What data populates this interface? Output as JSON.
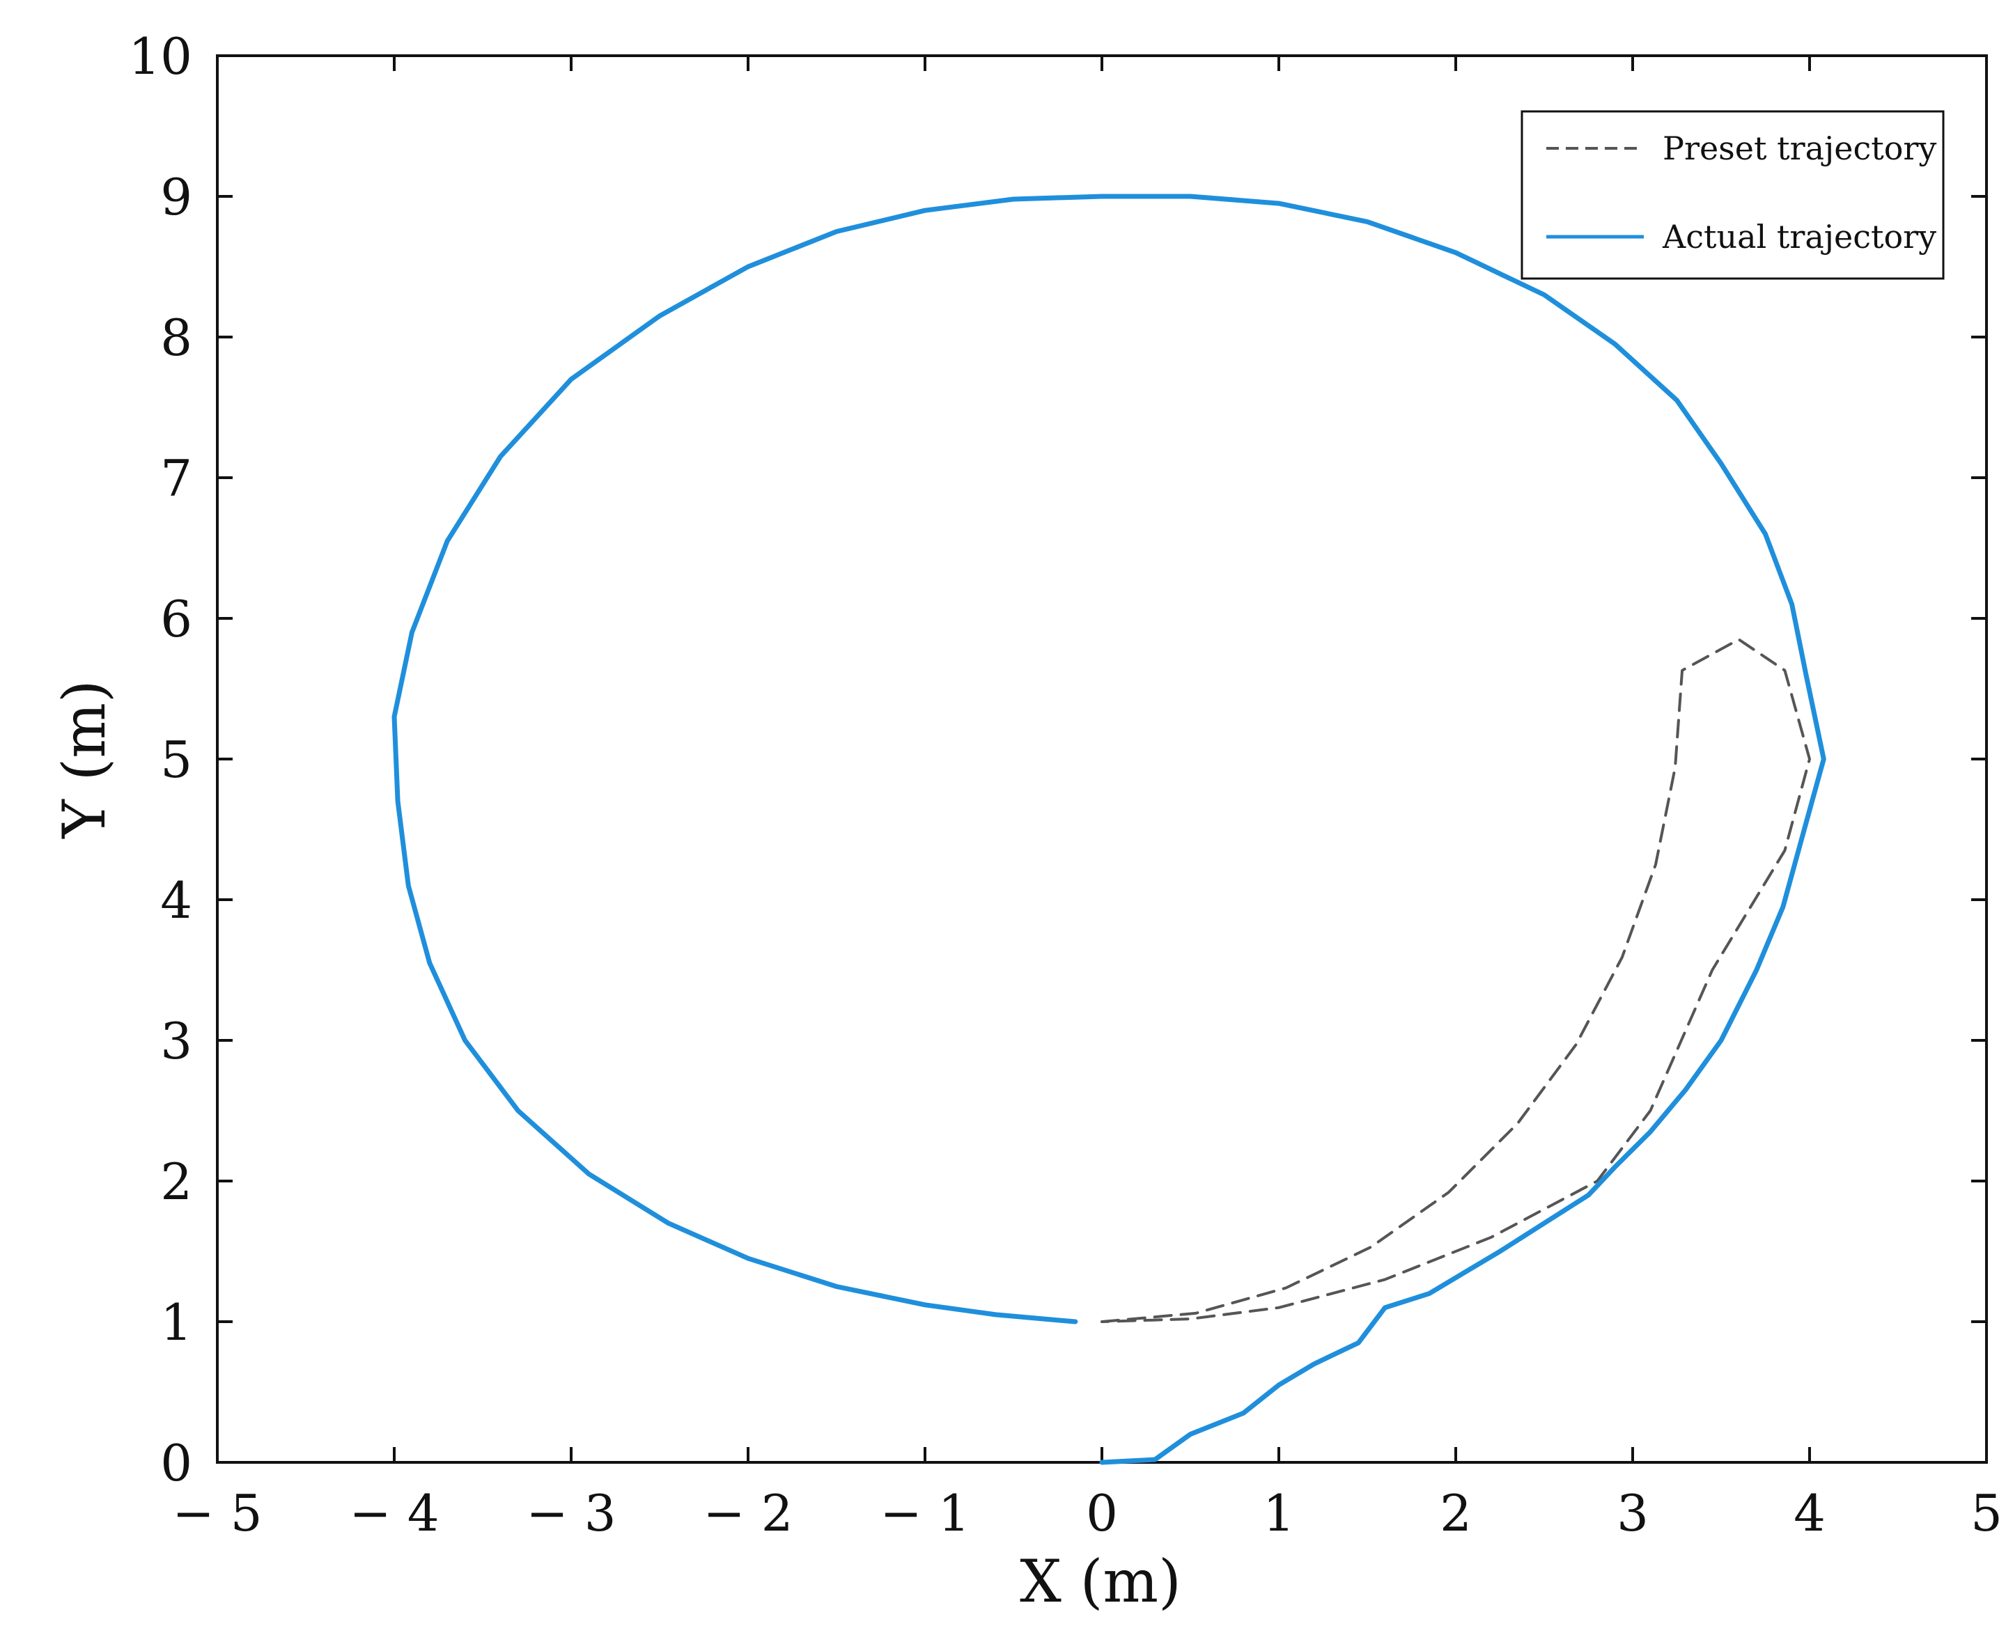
{
  "chart_data": {
    "type": "line",
    "title": "",
    "xlabel": "X (m)",
    "ylabel": "Y (m)",
    "xlim": [
      -5,
      5
    ],
    "ylim": [
      0,
      10
    ],
    "grid": false,
    "legend_position": "top-right",
    "x_ticks": [
      -5,
      -4,
      -3,
      -2,
      -1,
      0,
      1,
      2,
      3,
      4,
      5
    ],
    "x_tick_labels": [
      "− 5",
      "− 4",
      "− 3",
      "− 2",
      "− 1",
      "0",
      "1",
      "2",
      "3",
      "4",
      "5"
    ],
    "y_ticks": [
      0,
      1,
      2,
      3,
      4,
      5,
      6,
      7,
      8,
      9,
      10
    ],
    "y_tick_labels": [
      "0",
      "1",
      "2",
      "3",
      "4",
      "5",
      "6",
      "7",
      "8",
      "9",
      "10"
    ],
    "series": [
      {
        "name": "Preset trajectory",
        "color": "#555555",
        "style": "dashed",
        "points": [
          [
            0.0,
            1.0
          ],
          [
            0.53,
            1.06
          ],
          [
            1.04,
            1.24
          ],
          [
            1.52,
            1.53
          ],
          [
            1.96,
            1.92
          ],
          [
            2.35,
            2.41
          ],
          [
            2.68,
            2.97
          ],
          [
            2.94,
            3.59
          ],
          [
            3.13,
            4.25
          ],
          [
            3.24,
            4.94
          ],
          [
            3.28,
            5.63
          ],
          [
            3.6,
            5.85
          ],
          [
            3.86,
            5.63
          ],
          [
            4.0,
            5.0
          ],
          [
            3.86,
            4.35
          ],
          [
            3.45,
            3.5
          ],
          [
            3.1,
            2.5
          ],
          [
            2.8,
            2.0
          ],
          [
            2.2,
            1.6
          ],
          [
            1.6,
            1.3
          ],
          [
            1.0,
            1.1
          ],
          [
            0.5,
            1.02
          ],
          [
            0.0,
            1.0
          ]
        ]
      },
      {
        "name": "Actual trajectory",
        "color": "#1f8fdc",
        "style": "solid",
        "points": [
          [
            0.0,
            0.0
          ],
          [
            0.3,
            0.02
          ],
          [
            0.5,
            0.2
          ],
          [
            0.8,
            0.35
          ],
          [
            1.0,
            0.55
          ],
          [
            1.2,
            0.7
          ],
          [
            1.45,
            0.85
          ],
          [
            1.6,
            1.1
          ],
          [
            1.85,
            1.2
          ],
          [
            2.05,
            1.35
          ],
          [
            2.25,
            1.5
          ],
          [
            2.5,
            1.7
          ],
          [
            2.75,
            1.9
          ],
          [
            2.9,
            2.1
          ],
          [
            3.1,
            2.35
          ],
          [
            3.3,
            2.65
          ],
          [
            3.5,
            3.0
          ],
          [
            3.7,
            3.5
          ],
          [
            3.85,
            3.95
          ],
          [
            3.97,
            4.5
          ],
          [
            4.08,
            5.0
          ],
          [
            3.98,
            5.6
          ],
          [
            3.9,
            6.1
          ],
          [
            3.75,
            6.6
          ],
          [
            3.5,
            7.1
          ],
          [
            3.25,
            7.55
          ],
          [
            2.9,
            7.95
          ],
          [
            2.5,
            8.3
          ],
          [
            2.0,
            8.6
          ],
          [
            1.5,
            8.82
          ],
          [
            1.0,
            8.95
          ],
          [
            0.5,
            9.0
          ],
          [
            0.0,
            9.0
          ],
          [
            -0.5,
            8.98
          ],
          [
            -1.0,
            8.9
          ],
          [
            -1.5,
            8.75
          ],
          [
            -2.0,
            8.5
          ],
          [
            -2.5,
            8.15
          ],
          [
            -3.0,
            7.7
          ],
          [
            -3.4,
            7.15
          ],
          [
            -3.7,
            6.55
          ],
          [
            -3.9,
            5.9
          ],
          [
            -4.0,
            5.3
          ],
          [
            -3.98,
            4.7
          ],
          [
            -3.92,
            4.1
          ],
          [
            -3.8,
            3.55
          ],
          [
            -3.6,
            3.0
          ],
          [
            -3.3,
            2.5
          ],
          [
            -2.9,
            2.05
          ],
          [
            -2.45,
            1.7
          ],
          [
            -2.0,
            1.45
          ],
          [
            -1.5,
            1.25
          ],
          [
            -1.0,
            1.12
          ],
          [
            -0.6,
            1.05
          ],
          [
            -0.15,
            1.0
          ]
        ]
      }
    ]
  }
}
